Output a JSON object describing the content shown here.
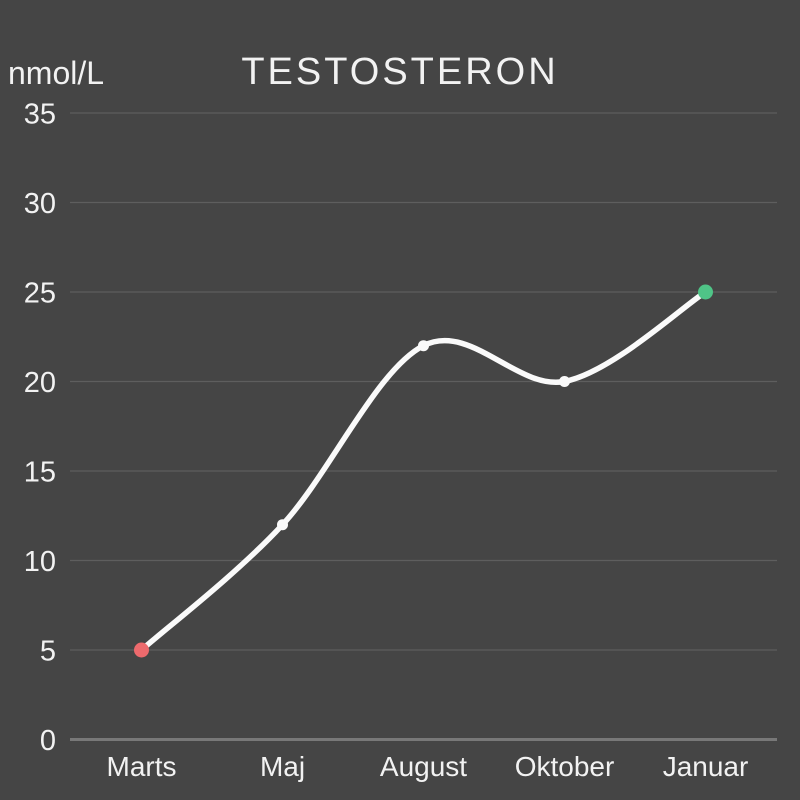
{
  "chart_data": {
    "type": "line",
    "title": "TESTOSTERON",
    "ylabel": "nmol/L",
    "xlabel": "",
    "categories": [
      "Marts",
      "Maj",
      "August",
      "Oktober",
      "Januar"
    ],
    "series": [
      {
        "name": "Testosteron (nmol/L)",
        "values": [
          5,
          12,
          22,
          20,
          25
        ]
      }
    ],
    "yticks": [
      0,
      5,
      10,
      15,
      20,
      25,
      30,
      35
    ],
    "ylim": [
      0,
      35
    ],
    "grid": true,
    "legend_position": "none",
    "curve": "smooth",
    "point_colors": [
      "#ed6a6d",
      "#fafafa",
      "#fafafa",
      "#fafafa",
      "#4fc487"
    ]
  },
  "colors": {
    "background": "#454545",
    "gridline": "#5e5e5e",
    "baseline": "#787878",
    "text": "#f2f2f2",
    "line": "#fafafa",
    "point_start": "#ed6a6d",
    "point_mid": "#fafafa",
    "point_end": "#4fc487"
  }
}
